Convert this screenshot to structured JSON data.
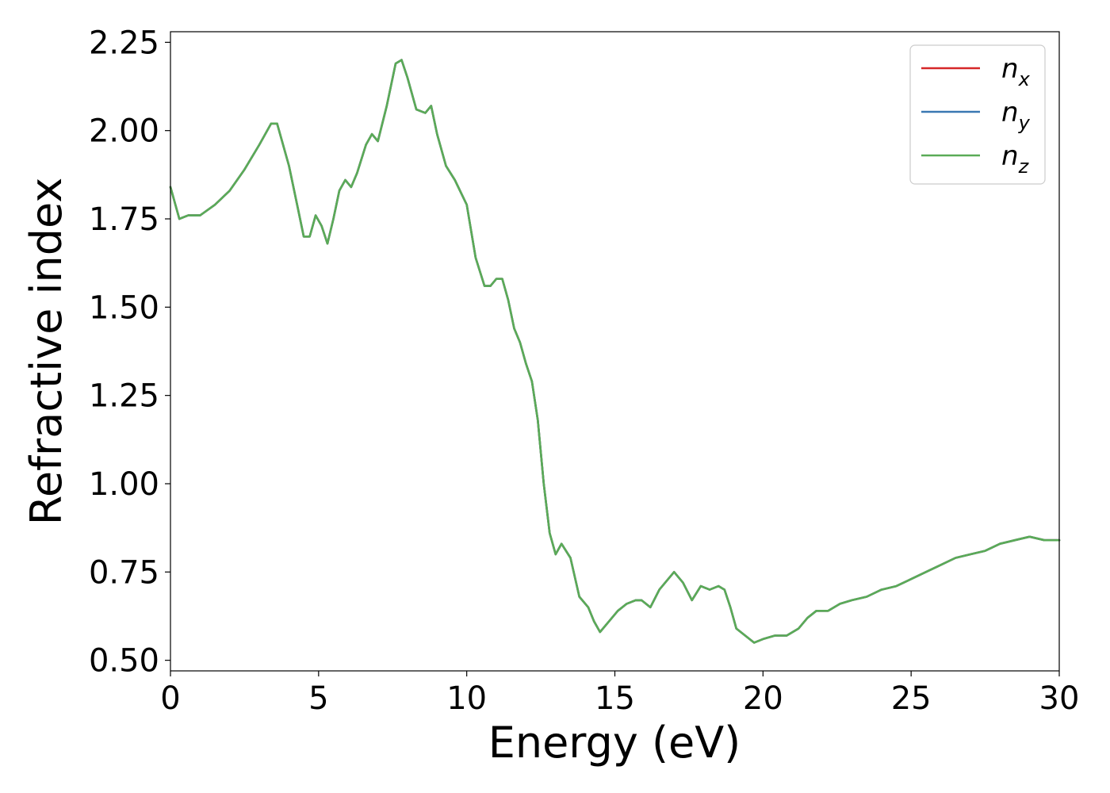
{
  "chart_data": {
    "type": "line",
    "xlabel": "Energy (eV)",
    "ylabel": "Refractive index",
    "xlim": [
      0,
      30
    ],
    "ylim": [
      0.47,
      2.28
    ],
    "xticks": [
      0,
      5,
      10,
      15,
      20,
      25,
      30
    ],
    "yticks": [
      0.5,
      0.75,
      1.0,
      1.25,
      1.5,
      1.75,
      2.0,
      2.25
    ],
    "ytick_labels": [
      "0.50",
      "0.75",
      "1.00",
      "1.25",
      "1.50",
      "1.75",
      "2.00",
      "2.25"
    ],
    "grid": false,
    "legend_position": "top-right",
    "x": [
      0,
      0.3,
      0.6,
      1.0,
      1.5,
      2.0,
      2.5,
      3.0,
      3.4,
      3.6,
      3.8,
      4.0,
      4.3,
      4.5,
      4.7,
      4.9,
      5.1,
      5.3,
      5.5,
      5.7,
      5.9,
      6.1,
      6.3,
      6.6,
      6.8,
      7.0,
      7.3,
      7.6,
      7.8,
      8.0,
      8.3,
      8.6,
      8.8,
      9.0,
      9.3,
      9.6,
      10.0,
      10.3,
      10.6,
      10.8,
      11.0,
      11.2,
      11.4,
      11.6,
      11.8,
      12.0,
      12.2,
      12.4,
      12.6,
      12.8,
      13.0,
      13.2,
      13.5,
      13.8,
      14.1,
      14.3,
      14.5,
      14.8,
      15.1,
      15.4,
      15.7,
      15.9,
      16.2,
      16.5,
      16.7,
      17.0,
      17.3,
      17.6,
      17.9,
      18.2,
      18.5,
      18.7,
      18.9,
      19.1,
      19.4,
      19.7,
      20.0,
      20.4,
      20.8,
      21.2,
      21.5,
      21.8,
      22.2,
      22.6,
      23.0,
      23.5,
      24.0,
      24.5,
      25.0,
      25.5,
      26.0,
      26.5,
      27.0,
      27.5,
      28.0,
      28.5,
      29.0,
      29.5,
      30.0
    ],
    "series": [
      {
        "name": "n_x",
        "color": "#d62728",
        "y": [
          1.84,
          1.75,
          1.76,
          1.76,
          1.79,
          1.83,
          1.89,
          1.96,
          2.02,
          2.02,
          1.96,
          1.9,
          1.78,
          1.7,
          1.7,
          1.76,
          1.73,
          1.68,
          1.75,
          1.83,
          1.86,
          1.84,
          1.88,
          1.96,
          1.99,
          1.97,
          2.07,
          2.19,
          2.2,
          2.15,
          2.06,
          2.05,
          2.07,
          1.99,
          1.9,
          1.86,
          1.79,
          1.64,
          1.56,
          1.56,
          1.58,
          1.58,
          1.52,
          1.44,
          1.4,
          1.34,
          1.29,
          1.18,
          1.0,
          0.86,
          0.8,
          0.83,
          0.79,
          0.68,
          0.65,
          0.61,
          0.58,
          0.61,
          0.64,
          0.66,
          0.67,
          0.67,
          0.65,
          0.7,
          0.72,
          0.75,
          0.72,
          0.67,
          0.71,
          0.7,
          0.71,
          0.7,
          0.65,
          0.59,
          0.57,
          0.55,
          0.56,
          0.57,
          0.57,
          0.59,
          0.62,
          0.64,
          0.64,
          0.66,
          0.67,
          0.68,
          0.7,
          0.71,
          0.73,
          0.75,
          0.77,
          0.79,
          0.8,
          0.81,
          0.83,
          0.84,
          0.85,
          0.84,
          0.84
        ]
      },
      {
        "name": "n_y",
        "color": "#3a78b2",
        "y": [
          1.84,
          1.75,
          1.76,
          1.76,
          1.79,
          1.83,
          1.89,
          1.96,
          2.02,
          2.02,
          1.96,
          1.9,
          1.78,
          1.7,
          1.7,
          1.76,
          1.73,
          1.68,
          1.75,
          1.83,
          1.86,
          1.84,
          1.88,
          1.96,
          1.99,
          1.97,
          2.07,
          2.19,
          2.2,
          2.15,
          2.06,
          2.05,
          2.07,
          1.99,
          1.9,
          1.86,
          1.79,
          1.64,
          1.56,
          1.56,
          1.58,
          1.58,
          1.52,
          1.44,
          1.4,
          1.34,
          1.29,
          1.18,
          1.0,
          0.86,
          0.8,
          0.83,
          0.79,
          0.68,
          0.65,
          0.61,
          0.58,
          0.61,
          0.64,
          0.66,
          0.67,
          0.67,
          0.65,
          0.7,
          0.72,
          0.75,
          0.72,
          0.67,
          0.71,
          0.7,
          0.71,
          0.7,
          0.65,
          0.59,
          0.57,
          0.55,
          0.56,
          0.57,
          0.57,
          0.59,
          0.62,
          0.64,
          0.64,
          0.66,
          0.67,
          0.68,
          0.7,
          0.71,
          0.73,
          0.75,
          0.77,
          0.79,
          0.8,
          0.81,
          0.83,
          0.84,
          0.85,
          0.84,
          0.84
        ]
      },
      {
        "name": "n_z",
        "color": "#5aab57",
        "y": [
          1.84,
          1.75,
          1.76,
          1.76,
          1.79,
          1.83,
          1.89,
          1.96,
          2.02,
          2.02,
          1.96,
          1.9,
          1.78,
          1.7,
          1.7,
          1.76,
          1.73,
          1.68,
          1.75,
          1.83,
          1.86,
          1.84,
          1.88,
          1.96,
          1.99,
          1.97,
          2.07,
          2.19,
          2.2,
          2.15,
          2.06,
          2.05,
          2.07,
          1.99,
          1.9,
          1.86,
          1.79,
          1.64,
          1.56,
          1.56,
          1.58,
          1.58,
          1.52,
          1.44,
          1.4,
          1.34,
          1.29,
          1.18,
          1.0,
          0.86,
          0.8,
          0.83,
          0.79,
          0.68,
          0.65,
          0.61,
          0.58,
          0.61,
          0.64,
          0.66,
          0.67,
          0.67,
          0.65,
          0.7,
          0.72,
          0.75,
          0.72,
          0.67,
          0.71,
          0.7,
          0.71,
          0.7,
          0.65,
          0.59,
          0.57,
          0.55,
          0.56,
          0.57,
          0.57,
          0.59,
          0.62,
          0.64,
          0.64,
          0.66,
          0.67,
          0.68,
          0.7,
          0.71,
          0.73,
          0.75,
          0.77,
          0.79,
          0.8,
          0.81,
          0.83,
          0.84,
          0.85,
          0.84,
          0.84
        ]
      }
    ],
    "legend": [
      {
        "base": "n",
        "sub": "x"
      },
      {
        "base": "n",
        "sub": "y"
      },
      {
        "base": "n",
        "sub": "z"
      }
    ]
  }
}
